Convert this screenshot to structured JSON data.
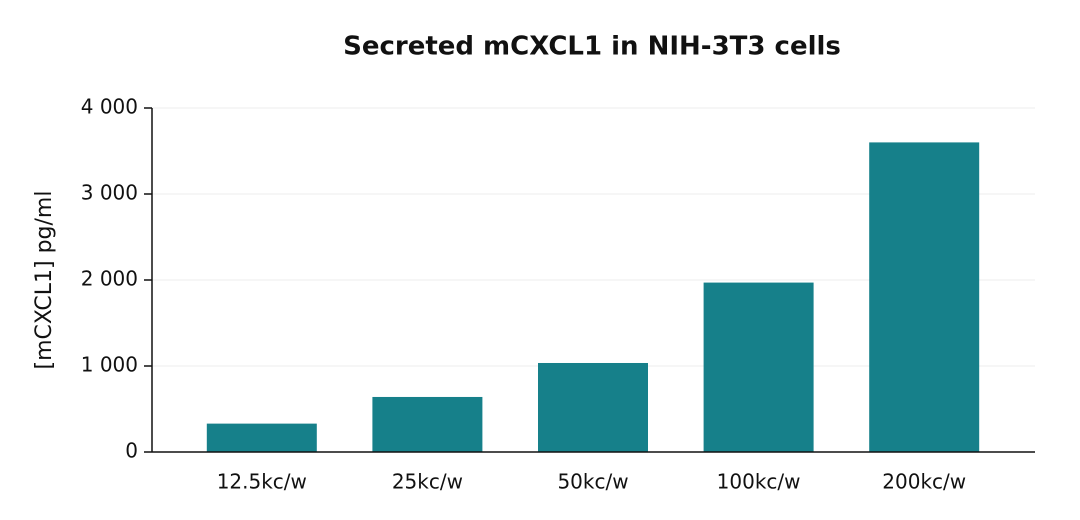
{
  "chart_data": {
    "type": "bar",
    "title": "Secreted mCXCL1 in NIH-3T3 cells",
    "y_label": "[mCXCL1] pg/ml",
    "categories": [
      "12.5kc/w",
      "25kc/w",
      "50kc/w",
      "100kc/w",
      "200kc/w"
    ],
    "values": [
      330,
      640,
      1035,
      1970,
      3600
    ],
    "color": "#16808a",
    "ylim": [
      0,
      4000
    ],
    "yticks": [
      0,
      {
        "value": 1000,
        "label": "1 000"
      },
      {
        "value": 2000,
        "label": "2 000"
      },
      {
        "value": 3000,
        "label": "3 000"
      },
      {
        "value": 4000,
        "label": "4 000"
      }
    ],
    "grid": true
  }
}
